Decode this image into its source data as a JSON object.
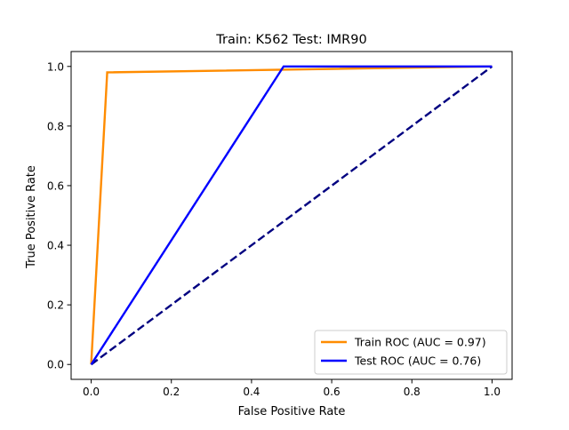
{
  "chart_data": {
    "type": "line",
    "title": "Train: K562   Test: IMR90",
    "xlabel": "False Positive Rate",
    "ylabel": "True Positive Rate",
    "xlim": [
      -0.05,
      1.05
    ],
    "ylim": [
      -0.05,
      1.05
    ],
    "xticks": [
      0.0,
      0.2,
      0.4,
      0.6,
      0.8,
      1.0
    ],
    "yticks": [
      0.0,
      0.2,
      0.4,
      0.6,
      0.8,
      1.0
    ],
    "xtick_labels": [
      "0.0",
      "0.2",
      "0.4",
      "0.6",
      "0.8",
      "1.0"
    ],
    "ytick_labels": [
      "0.0",
      "0.2",
      "0.4",
      "0.6",
      "0.8",
      "1.0"
    ],
    "grid": false,
    "legend_position": "lower-right",
    "series": [
      {
        "name": "Train ROC (AUC = 0.97)",
        "color": "#ff8c00",
        "style": "solid",
        "x": [
          0.0,
          0.04,
          1.0
        ],
        "y": [
          0.0,
          0.98,
          1.0
        ]
      },
      {
        "name": "Test ROC (AUC = 0.76)",
        "color": "#0000ff",
        "style": "solid",
        "x": [
          0.0,
          0.48,
          1.0
        ],
        "y": [
          0.0,
          1.0,
          1.0
        ]
      }
    ],
    "reference_line": {
      "color": "#000080",
      "style": "dashed",
      "x": [
        0.0,
        1.0
      ],
      "y": [
        0.0,
        1.0
      ]
    }
  }
}
